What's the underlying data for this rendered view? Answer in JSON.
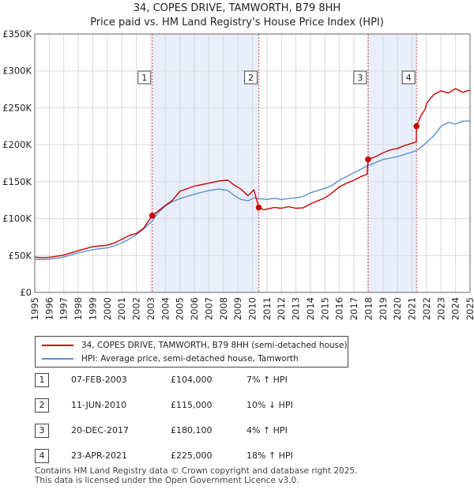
{
  "header": {
    "line1": "34, COPES DRIVE, TAMWORTH, B79 8HH",
    "line2": "Price paid vs. HM Land Registry's House Price Index (HPI)"
  },
  "chart_data": {
    "type": "line",
    "xlim": [
      1995,
      2025
    ],
    "ylim": [
      0,
      350000
    ],
    "y_ticks": [
      {
        "value": 0,
        "label": "£0"
      },
      {
        "value": 50000,
        "label": "£50K"
      },
      {
        "value": 100000,
        "label": "£100K"
      },
      {
        "value": 150000,
        "label": "£150K"
      },
      {
        "value": 200000,
        "label": "£200K"
      },
      {
        "value": 250000,
        "label": "£250K"
      },
      {
        "value": 300000,
        "label": "£300K"
      },
      {
        "value": 350000,
        "label": "£350K"
      }
    ],
    "x_ticks": [
      "1995",
      "1996",
      "1997",
      "1998",
      "1999",
      "2000",
      "2001",
      "2002",
      "2003",
      "2004",
      "2005",
      "2006",
      "2007",
      "2008",
      "2009",
      "2010",
      "2011",
      "2012",
      "2013",
      "2014",
      "2015",
      "2016",
      "2017",
      "2018",
      "2019",
      "2020",
      "2021",
      "2022",
      "2023",
      "2024",
      "2025"
    ],
    "grid": true,
    "colors": {
      "price": "#cc0000",
      "hpi": "#5b8fcf",
      "shade": "#e8eefa",
      "vline": "#cc0000"
    },
    "shaded_periods": [
      [
        2003.1,
        2010.44
      ],
      [
        2017.97,
        2021.31
      ]
    ],
    "series": [
      {
        "name": "34, COPES DRIVE, TAMWORTH, B79 8HH (semi-detached house)",
        "color": "#cc0000",
        "x": [
          1995,
          1995.5,
          1996,
          1997,
          1998,
          1999,
          2000,
          2000.5,
          2001,
          2001.5,
          2002,
          2002.5,
          2003.1,
          2003.5,
          2004,
          2004.5,
          2005,
          2006,
          2007,
          2007.7,
          2008.3,
          2008.7,
          2009.2,
          2009.7,
          2010.1,
          2010.44,
          2010.8,
          2011,
          2011.5,
          2012,
          2012.5,
          2013,
          2013.5,
          2014,
          2015,
          2015.5,
          2016,
          2016.5,
          2017,
          2017.5,
          2017.9,
          2017.97,
          2018.5,
          2019,
          2019.5,
          2020,
          2020.5,
          2021,
          2021.3,
          2021.31,
          2021.6,
          2021.9,
          2022,
          2022.5,
          2023,
          2023.5,
          2024,
          2024.5,
          2025
        ],
        "values": [
          48000,
          47000,
          47500,
          50500,
          56500,
          62000,
          64000,
          67000,
          72000,
          77000,
          80000,
          87000,
          104000,
          110000,
          118000,
          125000,
          137000,
          144000,
          148000,
          151000,
          152000,
          146000,
          140000,
          131000,
          139000,
          115000,
          112000,
          113000,
          115000,
          114000,
          116000,
          114000,
          114500,
          120000,
          128000,
          135000,
          143000,
          148000,
          152000,
          157000,
          160000,
          180100,
          184000,
          189000,
          193000,
          195000,
          199000,
          202000,
          204000,
          225000,
          239000,
          248000,
          256000,
          268000,
          273000,
          270000,
          276000,
          271000,
          274000
        ]
      },
      {
        "name": "HPI: Average price, semi-detached house, Tamworth",
        "color": "#5b8fcf",
        "x": [
          1995,
          1995.5,
          1996,
          1997,
          1998,
          1999,
          2000,
          2000.5,
          2001,
          2001.5,
          2002,
          2002.5,
          2003.1,
          2003.5,
          2004,
          2004.5,
          2005,
          2006,
          2007,
          2007.7,
          2008.3,
          2008.7,
          2009.2,
          2009.7,
          2010.1,
          2010.44,
          2011,
          2011.5,
          2012,
          2012.5,
          2013,
          2013.5,
          2014,
          2015,
          2015.5,
          2016,
          2016.5,
          2017,
          2017.5,
          2017.97,
          2018.5,
          2019,
          2019.5,
          2020,
          2020.5,
          2021,
          2021.31,
          2021.6,
          2022,
          2022.5,
          2023,
          2023.5,
          2024,
          2024.5,
          2025
        ],
        "values": [
          45000,
          44500,
          45000,
          48000,
          53500,
          58000,
          60500,
          63000,
          67000,
          72000,
          78000,
          86000,
          97000,
          108000,
          117000,
          123000,
          127000,
          133000,
          138000,
          140000,
          138000,
          132000,
          126000,
          124000,
          128000,
          127000,
          126000,
          127500,
          126000,
          127000,
          128000,
          130000,
          135000,
          141000,
          145000,
          152000,
          157000,
          162000,
          167000,
          172000,
          176000,
          180000,
          182000,
          184000,
          187000,
          190000,
          192000,
          196000,
          203000,
          212000,
          225000,
          230000,
          228000,
          232000,
          232000
        ]
      }
    ],
    "markers": [
      {
        "label": "1",
        "x": 2003.1,
        "value": 104000
      },
      {
        "label": "2",
        "x": 2010.44,
        "value": 115000
      },
      {
        "label": "3",
        "x": 2017.97,
        "value": 180100
      },
      {
        "label": "4",
        "x": 2021.31,
        "value": 225000
      }
    ]
  },
  "legend": {
    "price_label": "34, COPES DRIVE, TAMWORTH, B79 8HH (semi-detached house)",
    "hpi_label": "HPI: Average price, semi-detached house, Tamworth"
  },
  "sales": [
    {
      "num": "1",
      "date": "07-FEB-2003",
      "price": "£104,000",
      "pct": "7% ↑ HPI"
    },
    {
      "num": "2",
      "date": "11-JUN-2010",
      "price": "£115,000",
      "pct": "10% ↓ HPI"
    },
    {
      "num": "3",
      "date": "20-DEC-2017",
      "price": "£180,100",
      "pct": "4% ↑ HPI"
    },
    {
      "num": "4",
      "date": "23-APR-2021",
      "price": "£225,000",
      "pct": "18% ↑ HPI"
    }
  ],
  "footer": {
    "line1": "Contains HM Land Registry data © Crown copyright and database right 2025.",
    "line2": "This data is licensed under the Open Government Licence v3.0."
  }
}
